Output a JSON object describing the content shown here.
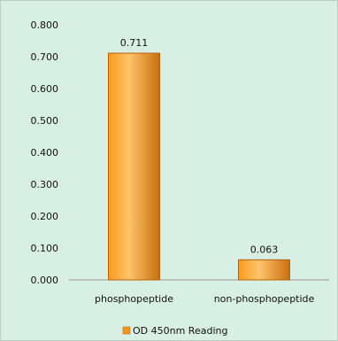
{
  "chart_data": {
    "type": "bar",
    "categories": [
      "phosphopeptide",
      "non-phosphopeptide"
    ],
    "series": [
      {
        "name": "OD 450nm Reading",
        "values": [
          0.711,
          0.063
        ],
        "data_labels": [
          "0.711",
          "0.063"
        ]
      }
    ],
    "ylim": [
      0,
      0.8
    ],
    "y_ticks": [
      "0.000",
      "0.100",
      "0.200",
      "0.300",
      "0.400",
      "0.500",
      "0.600",
      "0.700",
      "0.800"
    ],
    "y_tick_values": [
      0,
      0.1,
      0.2,
      0.3,
      0.4,
      0.5,
      0.6,
      0.7,
      0.8
    ],
    "title": "",
    "xlabel": "",
    "ylabel": "",
    "grid": false,
    "legend_position": "bottom",
    "colors": {
      "background": "#d8efe4",
      "frame": "#b9cfc4",
      "bar_fill_light": "#ffc46b",
      "bar_fill_mid": "#f99b1c",
      "bar_fill_dark": "#c9700e",
      "bar_stroke": "#b76207",
      "axis": "#9a9a9a",
      "legend_swatch": "#f29520"
    }
  }
}
